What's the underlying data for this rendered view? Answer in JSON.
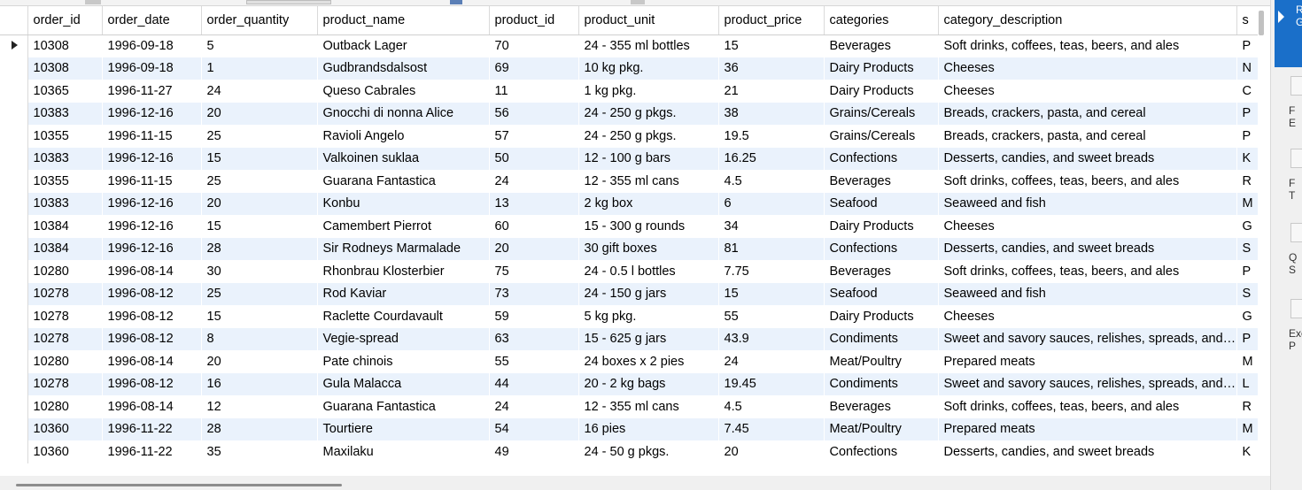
{
  "grid": {
    "columns": [
      "order_id",
      "order_date",
      "order_quantity",
      "product_name",
      "product_id",
      "product_unit",
      "product_price",
      "categories",
      "category_description",
      "s"
    ],
    "rows": [
      [
        "10308",
        "1996-09-18",
        "5",
        "Outback Lager",
        "70",
        "24 - 355 ml bottles",
        "15",
        "Beverages",
        "Soft drinks, coffees, teas, beers, and ales",
        "P"
      ],
      [
        "10308",
        "1996-09-18",
        "1",
        "Gudbrandsdalsost",
        "69",
        "10 kg pkg.",
        "36",
        "Dairy Products",
        "Cheeses",
        "N"
      ],
      [
        "10365",
        "1996-11-27",
        "24",
        "Queso Cabrales",
        "11",
        "1 kg pkg.",
        "21",
        "Dairy Products",
        "Cheeses",
        "C"
      ],
      [
        "10383",
        "1996-12-16",
        "20",
        "Gnocchi di nonna Alice",
        "56",
        "24 - 250 g pkgs.",
        "38",
        "Grains/Cereals",
        "Breads, crackers, pasta, and cereal",
        "P"
      ],
      [
        "10355",
        "1996-11-15",
        "25",
        "Ravioli Angelo",
        "57",
        "24 - 250 g pkgs.",
        "19.5",
        "Grains/Cereals",
        "Breads, crackers, pasta, and cereal",
        "P"
      ],
      [
        "10383",
        "1996-12-16",
        "15",
        "Valkoinen suklaa",
        "50",
        "12 - 100 g bars",
        "16.25",
        "Confections",
        "Desserts, candies, and sweet breads",
        "K"
      ],
      [
        "10355",
        "1996-11-15",
        "25",
        "Guarana Fantastica",
        "24",
        "12 - 355 ml cans",
        "4.5",
        "Beverages",
        "Soft drinks, coffees, teas, beers, and ales",
        "R"
      ],
      [
        "10383",
        "1996-12-16",
        "20",
        "Konbu",
        "13",
        "2 kg box",
        "6",
        "Seafood",
        "Seaweed and fish",
        "M"
      ],
      [
        "10384",
        "1996-12-16",
        "15",
        "Camembert Pierrot",
        "60",
        "15 - 300 g rounds",
        "34",
        "Dairy Products",
        "Cheeses",
        "G"
      ],
      [
        "10384",
        "1996-12-16",
        "28",
        "Sir Rodneys Marmalade",
        "20",
        "30 gift boxes",
        "81",
        "Confections",
        "Desserts, candies, and sweet breads",
        "S"
      ],
      [
        "10280",
        "1996-08-14",
        "30",
        "Rhonbrau Klosterbier",
        "75",
        "24 - 0.5 l bottles",
        "7.75",
        "Beverages",
        "Soft drinks, coffees, teas, beers, and ales",
        "P"
      ],
      [
        "10278",
        "1996-08-12",
        "25",
        "Rod Kaviar",
        "73",
        "24 - 150 g jars",
        "15",
        "Seafood",
        "Seaweed and fish",
        "S"
      ],
      [
        "10278",
        "1996-08-12",
        "15",
        "Raclette Courdavault",
        "59",
        "5 kg pkg.",
        "55",
        "Dairy Products",
        "Cheeses",
        "G"
      ],
      [
        "10278",
        "1996-08-12",
        "8",
        "Vegie-spread",
        "63",
        "15 - 625 g jars",
        "43.9",
        "Condiments",
        "Sweet and savory sauces, relishes, spreads, and seasonings",
        "P"
      ],
      [
        "10280",
        "1996-08-14",
        "20",
        "Pate chinois",
        "55",
        "24 boxes x 2 pies",
        "24",
        "Meat/Poultry",
        "Prepared meats",
        "M"
      ],
      [
        "10278",
        "1996-08-12",
        "16",
        "Gula Malacca",
        "44",
        "20 - 2 kg bags",
        "19.45",
        "Condiments",
        "Sweet and savory sauces, relishes, spreads, and seasonings",
        "L"
      ],
      [
        "10280",
        "1996-08-14",
        "12",
        "Guarana Fantastica",
        "24",
        "12 - 355 ml cans",
        "4.5",
        "Beverages",
        "Soft drinks, coffees, teas, beers, and ales",
        "R"
      ],
      [
        "10360",
        "1996-11-22",
        "28",
        "Tourtiere",
        "54",
        "16 pies",
        "7.45",
        "Meat/Poultry",
        "Prepared meats",
        "M"
      ],
      [
        "10360",
        "1996-11-22",
        "35",
        "Maxilaku",
        "49",
        "24 - 50 g pkgs.",
        "20",
        "Confections",
        "Desserts, candies, and sweet breads",
        "K"
      ]
    ]
  },
  "side_panel": {
    "active_label": "R\nG",
    "buttons": [
      {
        "name": "form-editor-button",
        "label": "F\nE"
      },
      {
        "name": "field-types-button",
        "label": "F\nT"
      },
      {
        "name": "query-stats-button",
        "label": "Q\nS"
      },
      {
        "name": "execution-plan-button",
        "label": "Exe\nP"
      }
    ]
  }
}
